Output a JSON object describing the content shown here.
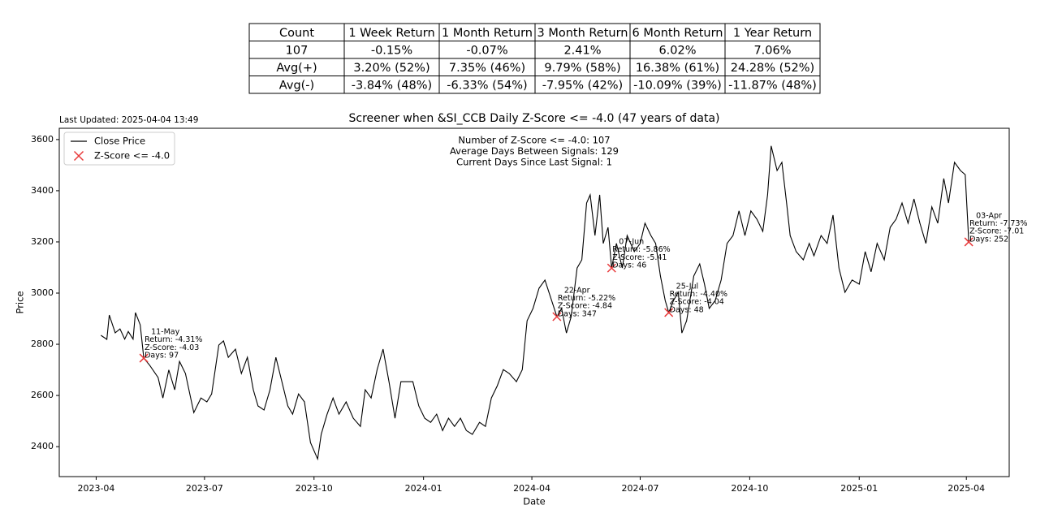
{
  "table": {
    "header": [
      "Count",
      "1 Week Return",
      "1 Month Return",
      "3 Month Return",
      "6 Month Return",
      "1 Year Return"
    ],
    "rows": [
      [
        "107",
        "-0.15%",
        "-0.07%",
        "2.41%",
        "6.02%",
        "7.06%"
      ],
      [
        "Avg(+)",
        "3.20% (52%)",
        "7.35% (46%)",
        "9.79% (58%)",
        "16.38% (61%)",
        "24.28% (52%)"
      ],
      [
        "Avg(-)",
        "-3.84% (48%)",
        "-6.33% (54%)",
        "-7.95% (42%)",
        "-10.09% (39%)",
        "-11.87% (48%)"
      ]
    ]
  },
  "chart_data": {
    "type": "line",
    "updated": "Last Updated: 2025-04-04 13:49",
    "title": "Screener when &SI_CCB Daily Z-Score <= -4.0 (47 years of data)",
    "x_label": "Date",
    "y_label": "Price",
    "stats_text": [
      "Number of Z-Score <= -4.0: 107",
      "Average Days Between Signals: 129",
      "Current Days Since Last Signal: 1"
    ],
    "legend": "upper left",
    "xlim": [
      "2023-03-01",
      "2025-05-07"
    ],
    "xticks": [
      {
        "value": "2023-04-01",
        "label": "2023-04"
      },
      {
        "value": "2023-07-01",
        "label": "2023-07"
      },
      {
        "value": "2023-10-01",
        "label": "2023-10"
      },
      {
        "value": "2024-01-01",
        "label": "2024-01"
      },
      {
        "value": "2024-04-01",
        "label": "2024-04"
      },
      {
        "value": "2024-07-01",
        "label": "2024-07"
      },
      {
        "value": "2024-10-01",
        "label": "2024-10"
      },
      {
        "value": "2025-01-01",
        "label": "2025-01"
      },
      {
        "value": "2025-04-01",
        "label": "2025-04"
      }
    ],
    "ylim": [
      2283,
      3644
    ],
    "yticks": [
      2400,
      2600,
      2800,
      3000,
      3200,
      3400,
      3600
    ],
    "series": [
      {
        "name": "Close Price",
        "type": "line",
        "color": "#000000",
        "x": [
          "2023-04-05",
          "2023-04-10",
          "2023-04-12",
          "2023-04-17",
          "2023-04-21",
          "2023-04-25",
          "2023-04-28",
          "2023-05-02",
          "2023-05-04",
          "2023-05-08",
          "2023-05-11",
          "2023-05-16",
          "2023-05-23",
          "2023-05-27",
          "2023-06-01",
          "2023-06-06",
          "2023-06-10",
          "2023-06-15",
          "2023-06-22",
          "2023-06-28",
          "2023-07-03",
          "2023-07-07",
          "2023-07-13",
          "2023-07-17",
          "2023-07-21",
          "2023-07-27",
          "2023-08-01",
          "2023-08-06",
          "2023-08-11",
          "2023-08-15",
          "2023-08-20",
          "2023-08-25",
          "2023-08-30",
          "2023-09-04",
          "2023-09-09",
          "2023-09-13",
          "2023-09-18",
          "2023-09-23",
          "2023-09-28",
          "2023-10-04",
          "2023-10-07",
          "2023-10-12",
          "2023-10-17",
          "2023-10-22",
          "2023-10-28",
          "2023-11-03",
          "2023-11-09",
          "2023-11-13",
          "2023-11-18",
          "2023-11-23",
          "2023-11-28",
          "2023-12-03",
          "2023-12-08",
          "2023-12-13",
          "2023-12-18",
          "2023-12-23",
          "2023-12-28",
          "2024-01-02",
          "2024-01-07",
          "2024-01-12",
          "2024-01-17",
          "2024-01-22",
          "2024-01-27",
          "2024-02-01",
          "2024-02-06",
          "2024-02-11",
          "2024-02-17",
          "2024-02-22",
          "2024-02-27",
          "2024-03-03",
          "2024-03-08",
          "2024-03-13",
          "2024-03-19",
          "2024-03-24",
          "2024-03-28",
          "2024-04-02",
          "2024-04-07",
          "2024-04-12",
          "2024-04-22",
          "2024-04-26",
          "2024-04-30",
          "2024-05-04",
          "2024-05-09",
          "2024-05-13",
          "2024-05-17",
          "2024-05-20",
          "2024-05-24",
          "2024-05-28",
          "2024-05-31",
          "2024-06-04",
          "2024-06-07",
          "2024-06-11",
          "2024-06-16",
          "2024-06-20",
          "2024-06-26",
          "2024-07-01",
          "2024-07-05",
          "2024-07-10",
          "2024-07-14",
          "2024-07-18",
          "2024-07-22",
          "2024-07-25",
          "2024-07-29",
          "2024-08-02",
          "2024-08-05",
          "2024-08-09",
          "2024-08-15",
          "2024-08-20",
          "2024-08-24",
          "2024-08-28",
          "2024-09-02",
          "2024-09-07",
          "2024-09-12",
          "2024-09-17",
          "2024-09-22",
          "2024-09-27",
          "2024-10-02",
          "2024-10-07",
          "2024-10-12",
          "2024-10-16",
          "2024-10-19",
          "2024-10-24",
          "2024-10-28",
          "2024-11-01",
          "2024-11-04",
          "2024-11-09",
          "2024-11-15",
          "2024-11-20",
          "2024-11-24",
          "2024-11-30",
          "2024-12-05",
          "2024-12-10",
          "2024-12-15",
          "2024-12-20",
          "2024-12-26",
          "2025-01-01",
          "2025-01-06",
          "2025-01-11",
          "2025-01-16",
          "2025-01-22",
          "2025-01-27",
          "2025-02-01",
          "2025-02-06",
          "2025-02-11",
          "2025-02-16",
          "2025-02-21",
          "2025-02-26",
          "2025-03-03",
          "2025-03-08",
          "2025-03-13",
          "2025-03-17",
          "2025-03-22",
          "2025-03-27",
          "2025-03-31",
          "2025-04-03"
        ],
        "values": [
          2835,
          2819,
          2914,
          2845,
          2860,
          2820,
          2850,
          2820,
          2924,
          2876,
          2746,
          2718,
          2670,
          2590,
          2700,
          2622,
          2733,
          2686,
          2533,
          2590,
          2575,
          2606,
          2797,
          2813,
          2749,
          2781,
          2686,
          2749,
          2622,
          2559,
          2543,
          2622,
          2749,
          2654,
          2559,
          2527,
          2606,
          2575,
          2416,
          2352,
          2448,
          2527,
          2590,
          2527,
          2575,
          2511,
          2479,
          2622,
          2590,
          2701,
          2781,
          2654,
          2511,
          2654,
          2654,
          2654,
          2559,
          2511,
          2495,
          2527,
          2463,
          2511,
          2479,
          2511,
          2463,
          2448,
          2495,
          2479,
          2590,
          2638,
          2701,
          2686,
          2654,
          2701,
          2892,
          2940,
          3019,
          3051,
          2908,
          2940,
          2844,
          2908,
          3098,
          3130,
          3352,
          3384,
          3225,
          3384,
          3194,
          3257,
          3098,
          3194,
          3098,
          3225,
          3162,
          3194,
          3273,
          3225,
          3194,
          3067,
          2971,
          2924,
          2971,
          3003,
          2844,
          2892,
          3067,
          3114,
          3035,
          2940,
          2971,
          3051,
          3194,
          3225,
          3321,
          3225,
          3321,
          3289,
          3241,
          3384,
          3575,
          3479,
          3511,
          3352,
          3225,
          3162,
          3130,
          3194,
          3146,
          3225,
          3194,
          3305,
          3098,
          3003,
          3051,
          3035,
          3162,
          3083,
          3194,
          3130,
          3257,
          3289,
          3352,
          3273,
          3368,
          3273,
          3194,
          3337,
          3273,
          3448,
          3352,
          3511,
          3479,
          3463,
          3200
        ]
      },
      {
        "name": "Z-Score <= -4.0",
        "type": "scatter",
        "color": "#e8393a",
        "x": [
          "2023-05-11",
          "2024-04-22",
          "2024-06-07",
          "2024-07-25",
          "2025-04-03"
        ],
        "values": [
          2746,
          2908,
          3098,
          2924,
          3200
        ]
      }
    ],
    "annotations": [
      [
        "11-May",
        "Return: -4.31%",
        "Z-Score: -4.03",
        "Days: 97"
      ],
      [
        "22-Apr",
        "Return: -5.22%",
        "Z-Score: -4.84",
        "Days: 347"
      ],
      [
        "07-Jun",
        "Return: -5.86%",
        "Z-Score: -5.41",
        "Days: 46"
      ],
      [
        "25-Jul",
        "Return: -4.40%",
        "Z-Score: -4.04",
        "Days: 48"
      ],
      [
        "03-Apr",
        "Return: -7.73%",
        "Z-Score: -7.01",
        "Days: 252"
      ]
    ]
  }
}
